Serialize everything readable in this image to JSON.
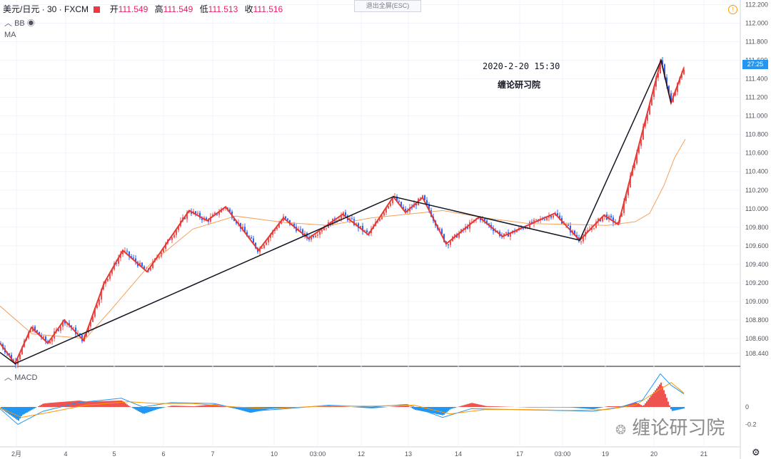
{
  "header": {
    "symbol": "美元/日元 · 30 · FXCM",
    "open_label": "开",
    "open": "111.549",
    "high_label": "高",
    "high": "111.549",
    "low_label": "低",
    "low": "111.513",
    "close_label": "收",
    "close": "111.516"
  },
  "indicators": {
    "bb": "BB",
    "ma": "MA",
    "macd": "MACD"
  },
  "fullscreen_exit": "退出全屏(ESC)",
  "price_tag": "27:25",
  "annotation": {
    "datetime": "2020-2-20 15:30",
    "source": "缠论研习院"
  },
  "watermark": "缠论研习院",
  "colors": {
    "bull": "#ef5350",
    "bear": "#2962ff",
    "stroke": "#e53935",
    "segment": "#131722",
    "ma": "#f5a05a",
    "macd_line": "#2196f3",
    "signal_line": "#ff9800"
  },
  "chart_data": {
    "type": "candlestick",
    "y_axis": {
      "range": [
        108.3,
        112.25
      ],
      "ticks": [
        "112.200",
        "112.000",
        "111.800",
        "111.600",
        "111.400",
        "111.200",
        "111.000",
        "110.800",
        "110.600",
        "110.400",
        "110.200",
        "110.000",
        "109.800",
        "109.600",
        "109.400",
        "109.200",
        "109.000",
        "108.800",
        "108.600",
        "108.440"
      ]
    },
    "x_axis": {
      "ticks": [
        "2月",
        "4",
        "5",
        "6",
        "7",
        "10",
        "03:00",
        "12",
        "13",
        "14",
        "17",
        "03:00",
        "19",
        "20",
        "21"
      ]
    },
    "stroke_pivots": [
      [
        0,
        108.55
      ],
      [
        21,
        108.33
      ],
      [
        44,
        108.72
      ],
      [
        67,
        108.55
      ],
      [
        90,
        108.8
      ],
      [
        117,
        108.58
      ],
      [
        146,
        109.2
      ],
      [
        172,
        109.55
      ],
      [
        206,
        109.32
      ],
      [
        265,
        109.98
      ],
      [
        290,
        109.87
      ],
      [
        316,
        110.02
      ],
      [
        362,
        109.55
      ],
      [
        397,
        109.9
      ],
      [
        432,
        109.68
      ],
      [
        480,
        109.94
      ],
      [
        516,
        109.72
      ],
      [
        551,
        110.13
      ],
      [
        568,
        109.96
      ],
      [
        592,
        110.12
      ],
      [
        625,
        109.62
      ],
      [
        671,
        109.91
      ],
      [
        704,
        109.7
      ],
      [
        777,
        109.95
      ],
      [
        812,
        109.66
      ],
      [
        846,
        109.93
      ],
      [
        866,
        109.83
      ],
      [
        926,
        111.6
      ],
      [
        940,
        111.14
      ],
      [
        958,
        111.52
      ]
    ],
    "segment_pivots": [
      [
        0,
        108.45
      ],
      [
        21,
        108.33
      ],
      [
        551,
        110.13
      ],
      [
        812,
        109.66
      ],
      [
        926,
        111.6
      ],
      [
        940,
        111.14
      ]
    ],
    "ma_series": [
      [
        0,
        108.95
      ],
      [
        45,
        108.65
      ],
      [
        120,
        108.6
      ],
      [
        160,
        108.95
      ],
      [
        210,
        109.4
      ],
      [
        270,
        109.78
      ],
      [
        330,
        109.92
      ],
      [
        400,
        109.85
      ],
      [
        460,
        109.82
      ],
      [
        520,
        109.9
      ],
      [
        570,
        109.94
      ],
      [
        620,
        109.98
      ],
      [
        680,
        109.9
      ],
      [
        740,
        109.84
      ],
      [
        800,
        109.83
      ],
      [
        850,
        109.82
      ],
      [
        890,
        109.86
      ],
      [
        910,
        109.95
      ],
      [
        930,
        110.25
      ],
      [
        945,
        110.55
      ],
      [
        960,
        110.75
      ]
    ],
    "macd_range": [
      -0.45,
      0.45
    ],
    "macd_line": [
      [
        0,
        -0.02
      ],
      [
        25,
        -0.2
      ],
      [
        60,
        -0.05
      ],
      [
        110,
        0.05
      ],
      [
        170,
        0.1
      ],
      [
        200,
        0.0
      ],
      [
        240,
        0.05
      ],
      [
        300,
        0.04
      ],
      [
        350,
        -0.05
      ],
      [
        400,
        -0.02
      ],
      [
        460,
        0.02
      ],
      [
        520,
        0.0
      ],
      [
        570,
        0.03
      ],
      [
        620,
        -0.12
      ],
      [
        660,
        -0.02
      ],
      [
        720,
        -0.03
      ],
      [
        780,
        -0.04
      ],
      [
        830,
        -0.05
      ],
      [
        870,
        0.0
      ],
      [
        900,
        0.08
      ],
      [
        925,
        0.38
      ],
      [
        940,
        0.25
      ],
      [
        958,
        0.15
      ]
    ],
    "signal_line": [
      [
        0,
        -0.01
      ],
      [
        30,
        -0.12
      ],
      [
        70,
        -0.06
      ],
      [
        120,
        0.02
      ],
      [
        180,
        0.06
      ],
      [
        220,
        0.04
      ],
      [
        270,
        0.04
      ],
      [
        330,
        0.0
      ],
      [
        380,
        -0.02
      ],
      [
        450,
        0.01
      ],
      [
        520,
        0.01
      ],
      [
        580,
        0.02
      ],
      [
        630,
        -0.08
      ],
      [
        680,
        -0.03
      ],
      [
        740,
        -0.03
      ],
      [
        800,
        -0.04
      ],
      [
        850,
        -0.03
      ],
      [
        890,
        0.02
      ],
      [
        920,
        0.18
      ],
      [
        940,
        0.28
      ],
      [
        958,
        0.16
      ]
    ]
  }
}
